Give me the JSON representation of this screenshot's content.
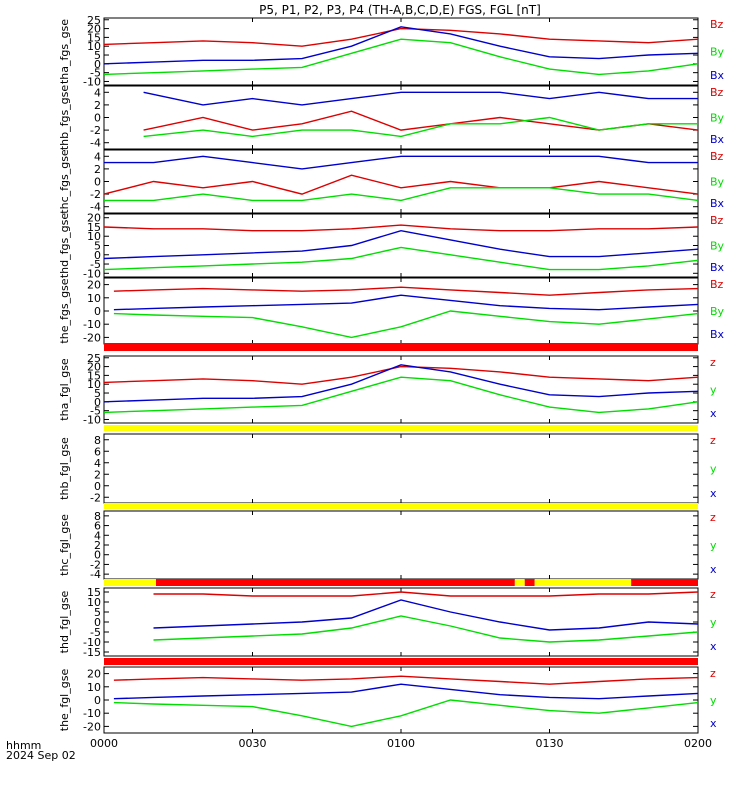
{
  "title": "P5, P1, P2, P3, P4 (TH-A,B,C,D,E) FGS, FGL [nT]",
  "xaxis": {
    "ticks": [
      "0000",
      "0030",
      "0100",
      "0130",
      "0200"
    ],
    "corner_label": "hhmm",
    "date_label": "2024 Sep 02"
  },
  "colors": {
    "z": "#dd0000",
    "y": "#00dd00",
    "x": "#0000cc",
    "flag_red": "#ff0000",
    "flag_yellow": "#ffff00"
  },
  "chart_data": {
    "type": "line",
    "x_range": [
      "0000",
      "0200"
    ],
    "panels": [
      {
        "ylabel": "tha_fgs_gse",
        "yticks": [
          "25",
          "20",
          "15",
          "10",
          "5",
          "0",
          "-5",
          "-10"
        ],
        "ylim": [
          -12,
          26
        ],
        "legend": [
          "Bz",
          "By",
          "Bx"
        ],
        "series": [
          {
            "name": "Bz",
            "x": [
              0,
              10,
              20,
              30,
              40,
              50,
              60,
              70,
              80,
              90,
              100,
              110,
              120
            ],
            "y": [
              11,
              12,
              13,
              12,
              10,
              14,
              20,
              19,
              17,
              14,
              13,
              12,
              14
            ]
          },
          {
            "name": "By",
            "x": [
              0,
              10,
              20,
              30,
              40,
              50,
              60,
              70,
              80,
              90,
              100,
              110,
              120
            ],
            "y": [
              -6,
              -5,
              -4,
              -3,
              -2,
              6,
              14,
              12,
              4,
              -3,
              -6,
              -4,
              0
            ]
          },
          {
            "name": "Bx",
            "x": [
              0,
              10,
              20,
              30,
              40,
              50,
              60,
              70,
              80,
              90,
              100,
              110,
              120
            ],
            "y": [
              0,
              1,
              2,
              2,
              3,
              10,
              21,
              17,
              10,
              4,
              3,
              5,
              6
            ]
          }
        ]
      },
      {
        "ylabel": "thb_fgs_gse",
        "yticks": [
          "4",
          "2",
          "0",
          "-2",
          "-4"
        ],
        "ylim": [
          -5,
          5
        ],
        "legend": [
          "Bz",
          "By",
          "Bx"
        ],
        "series": [
          {
            "name": "Bz",
            "x": [
              8,
              20,
              30,
              40,
              50,
              60,
              70,
              80,
              90,
              100,
              110,
              120
            ],
            "y": [
              -2,
              0,
              -2,
              -1,
              1,
              -2,
              -1,
              0,
              -1,
              -2,
              -1,
              -2
            ]
          },
          {
            "name": "By",
            "x": [
              8,
              20,
              30,
              40,
              50,
              60,
              70,
              80,
              90,
              100,
              110,
              120
            ],
            "y": [
              -3,
              -2,
              -3,
              -2,
              -2,
              -3,
              -1,
              -1,
              0,
              -2,
              -1,
              -1
            ]
          },
          {
            "name": "Bx",
            "x": [
              8,
              20,
              30,
              40,
              50,
              60,
              70,
              80,
              90,
              100,
              110,
              120
            ],
            "y": [
              4,
              2,
              3,
              2,
              3,
              4,
              4,
              4,
              3,
              4,
              3,
              3
            ]
          }
        ]
      },
      {
        "ylabel": "thc_fgs_gse",
        "yticks": [
          "4",
          "2",
          "0",
          "-2",
          "-4"
        ],
        "ylim": [
          -5,
          5
        ],
        "legend": [
          "Bz",
          "By",
          "Bx"
        ],
        "series": [
          {
            "name": "Bz",
            "x": [
              0,
              10,
              20,
              30,
              40,
              50,
              60,
              70,
              80,
              90,
              100,
              110,
              120
            ],
            "y": [
              -2,
              0,
              -1,
              0,
              -2,
              1,
              -1,
              0,
              -1,
              -1,
              0,
              -1,
              -2
            ]
          },
          {
            "name": "By",
            "x": [
              0,
              10,
              20,
              30,
              40,
              50,
              60,
              70,
              80,
              90,
              100,
              110,
              120
            ],
            "y": [
              -3,
              -3,
              -2,
              -3,
              -3,
              -2,
              -3,
              -1,
              -1,
              -1,
              -2,
              -2,
              -3
            ]
          },
          {
            "name": "Bx",
            "x": [
              0,
              10,
              20,
              30,
              40,
              50,
              60,
              70,
              80,
              90,
              100,
              110,
              120
            ],
            "y": [
              3,
              3,
              4,
              3,
              2,
              3,
              4,
              4,
              4,
              4,
              4,
              3,
              3
            ]
          }
        ]
      },
      {
        "ylabel": "thd_fgs_gse",
        "yticks": [
          "20",
          "15",
          "10",
          "5",
          "0",
          "-5",
          "-10"
        ],
        "ylim": [
          -12,
          22
        ],
        "legend": [
          "Bz",
          "By",
          "Bx"
        ],
        "series": [
          {
            "name": "Bz",
            "x": [
              0,
              10,
              20,
              30,
              40,
              50,
              60,
              70,
              80,
              90,
              100,
              110,
              120
            ],
            "y": [
              15,
              14,
              14,
              13,
              13,
              14,
              16,
              14,
              13,
              13,
              14,
              14,
              15
            ]
          },
          {
            "name": "By",
            "x": [
              0,
              10,
              20,
              30,
              40,
              50,
              60,
              70,
              80,
              90,
              100,
              110,
              120
            ],
            "y": [
              -8,
              -7,
              -6,
              -5,
              -4,
              -2,
              4,
              0,
              -4,
              -8,
              -8,
              -6,
              -3
            ]
          },
          {
            "name": "Bx",
            "x": [
              0,
              10,
              20,
              30,
              40,
              50,
              60,
              70,
              80,
              90,
              100,
              110,
              120
            ],
            "y": [
              -2,
              -1,
              0,
              1,
              2,
              5,
              13,
              8,
              3,
              -1,
              -1,
              1,
              3
            ]
          }
        ]
      },
      {
        "ylabel": "the_fgs_gse",
        "yticks": [
          "20",
          "10",
          "0",
          "-10",
          "-20"
        ],
        "ylim": [
          -25,
          25
        ],
        "legend": [
          "Bz",
          "By",
          "Bx"
        ],
        "series": [
          {
            "name": "Bz",
            "x": [
              2,
              10,
              20,
              30,
              40,
              50,
              60,
              70,
              80,
              90,
              100,
              110,
              120
            ],
            "y": [
              15,
              16,
              17,
              16,
              15,
              16,
              18,
              16,
              14,
              12,
              14,
              16,
              17
            ]
          },
          {
            "name": "By",
            "x": [
              2,
              10,
              20,
              30,
              40,
              50,
              60,
              70,
              80,
              90,
              100,
              110,
              120
            ],
            "y": [
              -2,
              -3,
              -4,
              -5,
              -12,
              -20,
              -12,
              0,
              -4,
              -8,
              -10,
              -6,
              -2
            ]
          },
          {
            "name": "Bx",
            "x": [
              2,
              10,
              20,
              30,
              40,
              50,
              60,
              70,
              80,
              90,
              100,
              110,
              120
            ],
            "y": [
              1,
              2,
              3,
              4,
              5,
              6,
              12,
              8,
              4,
              2,
              1,
              3,
              5
            ]
          }
        ]
      },
      {
        "ylabel": "tha_fgl_gse",
        "yticks": [
          "25",
          "20",
          "15",
          "10",
          "5",
          "0",
          "-5",
          "-10"
        ],
        "ylim": [
          -12,
          26
        ],
        "legend": [
          "z",
          "y",
          "x"
        ],
        "series": [
          {
            "name": "z",
            "x": [
              0,
              10,
              20,
              30,
              40,
              50,
              60,
              70,
              80,
              90,
              100,
              110,
              120
            ],
            "y": [
              11,
              12,
              13,
              12,
              10,
              14,
              20,
              19,
              17,
              14,
              13,
              12,
              14
            ]
          },
          {
            "name": "y",
            "x": [
              0,
              10,
              20,
              30,
              40,
              50,
              60,
              70,
              80,
              90,
              100,
              110,
              120
            ],
            "y": [
              -6,
              -5,
              -4,
              -3,
              -2,
              6,
              14,
              12,
              4,
              -3,
              -6,
              -4,
              0
            ]
          },
          {
            "name": "x",
            "x": [
              0,
              10,
              20,
              30,
              40,
              50,
              60,
              70,
              80,
              90,
              100,
              110,
              120
            ],
            "y": [
              0,
              1,
              2,
              2,
              3,
              10,
              21,
              17,
              10,
              4,
              3,
              5,
              6
            ]
          }
        ]
      },
      {
        "ylabel": "thb_fgl_gse",
        "yticks": [
          "8",
          "6",
          "4",
          "2",
          "0",
          "-2"
        ],
        "ylim": [
          -3,
          9
        ],
        "legend": [
          "z",
          "y",
          "x"
        ],
        "series": []
      },
      {
        "ylabel": "thc_fgl_gse",
        "yticks": [
          "8",
          "6",
          "4",
          "2",
          "0",
          "-2",
          "-4"
        ],
        "ylim": [
          -5,
          9
        ],
        "legend": [
          "z",
          "y",
          "x"
        ],
        "series": []
      },
      {
        "ylabel": "thd_fgl_gse",
        "yticks": [
          "15",
          "10",
          "5",
          "0",
          "-5",
          "-10",
          "-15"
        ],
        "ylim": [
          -17,
          17
        ],
        "legend": [
          "z",
          "y",
          "x"
        ],
        "series": [
          {
            "name": "z",
            "x": [
              10,
              20,
              30,
              40,
              50,
              60,
              70,
              80,
              90,
              100,
              110,
              120
            ],
            "y": [
              14,
              14,
              13,
              13,
              13,
              15,
              13,
              13,
              13,
              14,
              14,
              15
            ]
          },
          {
            "name": "y",
            "x": [
              10,
              20,
              30,
              40,
              50,
              60,
              70,
              80,
              90,
              100,
              110,
              120
            ],
            "y": [
              -9,
              -8,
              -7,
              -6,
              -3,
              3,
              -2,
              -8,
              -10,
              -9,
              -7,
              -5
            ]
          },
          {
            "name": "x",
            "x": [
              10,
              20,
              30,
              40,
              50,
              60,
              70,
              80,
              90,
              100,
              110,
              120
            ],
            "y": [
              -3,
              -2,
              -1,
              0,
              2,
              11,
              5,
              0,
              -4,
              -3,
              0,
              -1
            ]
          }
        ]
      },
      {
        "ylabel": "the_fgl_gse",
        "yticks": [
          "20",
          "10",
          "0",
          "-10",
          "-20"
        ],
        "ylim": [
          -25,
          25
        ],
        "legend": [
          "z",
          "y",
          "x"
        ],
        "series": [
          {
            "name": "z",
            "x": [
              2,
              10,
              20,
              30,
              40,
              50,
              60,
              70,
              80,
              90,
              100,
              110,
              120
            ],
            "y": [
              15,
              16,
              17,
              16,
              15,
              16,
              18,
              16,
              14,
              12,
              14,
              16,
              17
            ]
          },
          {
            "name": "y",
            "x": [
              2,
              10,
              20,
              30,
              40,
              50,
              60,
              70,
              80,
              90,
              100,
              110,
              120
            ],
            "y": [
              -2,
              -3,
              -4,
              -5,
              -12,
              -20,
              -12,
              0,
              -4,
              -8,
              -10,
              -6,
              -2
            ]
          },
          {
            "name": "x",
            "x": [
              2,
              10,
              20,
              30,
              40,
              50,
              60,
              70,
              80,
              90,
              100,
              110,
              120
            ],
            "y": [
              1,
              2,
              3,
              4,
              5,
              6,
              12,
              8,
              4,
              2,
              1,
              3,
              5
            ]
          }
        ]
      }
    ],
    "flag_bars": [
      {
        "segments": [
          {
            "from": 0,
            "to": 120,
            "color": "red"
          }
        ]
      },
      {
        "segments": [
          {
            "from": 0,
            "to": 120,
            "color": "yellow"
          }
        ]
      },
      {
        "segments": [
          {
            "from": 0,
            "to": 120,
            "color": "yellow"
          }
        ]
      },
      {
        "segments": [
          {
            "from": 0,
            "to": 10.5,
            "color": "yellow"
          },
          {
            "from": 10.5,
            "to": 83,
            "color": "red"
          },
          {
            "from": 83,
            "to": 85,
            "color": "yellow"
          },
          {
            "from": 85,
            "to": 87,
            "color": "red"
          },
          {
            "from": 87,
            "to": 106.5,
            "color": "yellow"
          },
          {
            "from": 106.5,
            "to": 120,
            "color": "red"
          }
        ]
      },
      {
        "segments": [
          {
            "from": 0,
            "to": 120,
            "color": "red"
          }
        ]
      }
    ]
  }
}
